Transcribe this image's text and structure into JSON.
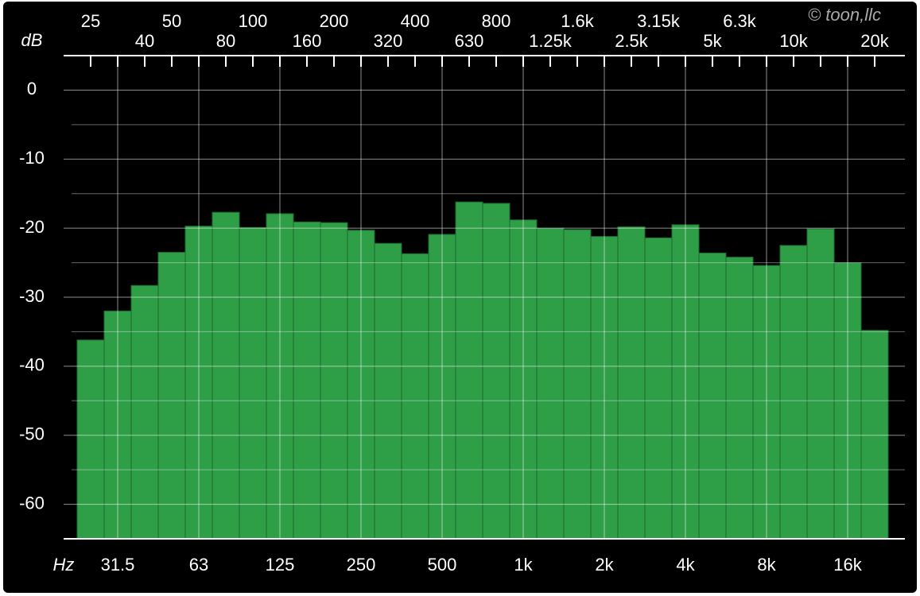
{
  "chart_data": {
    "type": "bar",
    "y_label": "dB",
    "x_label": "Hz",
    "watermark": "© toon,llc",
    "categories": [
      "25",
      "31.5",
      "40",
      "50",
      "63",
      "80",
      "100",
      "125",
      "160",
      "200",
      "250",
      "320",
      "400",
      "500",
      "630",
      "800",
      "1k",
      "1.25k",
      "1.6k",
      "2k",
      "2.5k",
      "3.15k",
      "4k",
      "5k",
      "6.3k",
      "8k",
      "10k",
      null,
      "16k",
      "20k"
    ],
    "values": [
      -36.2,
      -32.0,
      -28.3,
      -23.5,
      -19.7,
      -17.7,
      -19.9,
      -17.9,
      -19.1,
      -19.2,
      -20.3,
      -22.2,
      -23.7,
      -20.9,
      -16.2,
      -16.4,
      -18.8,
      -20.0,
      -20.2,
      -21.2,
      -19.8,
      -21.4,
      -19.5,
      -23.6,
      -24.2,
      -25.4,
      -22.5,
      -20.1,
      -25.0,
      -34.8
    ],
    "color": "#2e9e47",
    "ylim": [
      -65,
      5
    ],
    "yticks": [
      -60,
      -50,
      -40,
      -30,
      -20,
      -10,
      0
    ],
    "grid": true,
    "minor_grid": true
  }
}
